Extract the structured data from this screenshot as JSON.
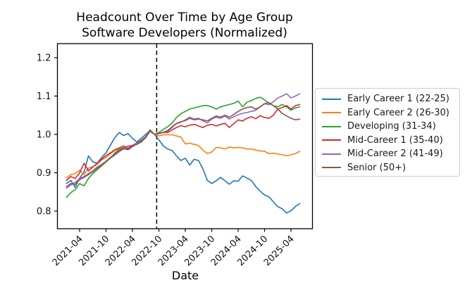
{
  "figure": {
    "background": "#ffffff",
    "text_color": "#000000"
  },
  "chart_data": {
    "type": "line",
    "title": "Headcount Over Time by Age Group Software Developers (Normalized)",
    "title_lines": [
      "Headcount Over Time by Age Group",
      "Software Developers (Normalized)"
    ],
    "xlabel": "Date",
    "ylabel": "",
    "grid": false,
    "legend_position": "right",
    "y_ticks": [
      0.8,
      0.9,
      1.0,
      1.1,
      1.2
    ],
    "ylim": [
      0.754,
      1.237
    ],
    "x_tick_labels": [
      "2021-04",
      "2021-10",
      "2022-04",
      "2022-10",
      "2023-04",
      "2023-10",
      "2024-04",
      "2024-10",
      "2025-04"
    ],
    "vline_date": "2022-09",
    "vline_style": "dashed-black",
    "x_months": [
      "2021-01",
      "2021-02",
      "2021-03",
      "2021-04",
      "2021-05",
      "2021-06",
      "2021-07",
      "2021-08",
      "2021-09",
      "2021-10",
      "2021-11",
      "2021-12",
      "2022-01",
      "2022-02",
      "2022-03",
      "2022-04",
      "2022-05",
      "2022-06",
      "2022-07",
      "2022-08",
      "2022-09",
      "2022-10",
      "2022-11",
      "2022-12",
      "2023-01",
      "2023-02",
      "2023-03",
      "2023-04",
      "2023-05",
      "2023-06",
      "2023-07",
      "2023-08",
      "2023-09",
      "2023-10",
      "2023-11",
      "2023-12",
      "2024-01",
      "2024-02",
      "2024-03",
      "2024-04",
      "2024-05",
      "2024-06",
      "2024-07",
      "2024-08",
      "2024-09",
      "2024-10",
      "2024-11",
      "2024-12",
      "2025-01",
      "2025-02",
      "2025-03",
      "2025-04",
      "2025-05",
      "2025-06"
    ],
    "series": [
      {
        "name": "Early Career 1 (22-25)",
        "color": "#1f77b4",
        "values": [
          0.872,
          0.88,
          0.862,
          0.886,
          0.902,
          0.944,
          0.928,
          0.925,
          0.94,
          0.952,
          0.972,
          0.992,
          1.005,
          0.997,
          1.002,
          0.99,
          0.98,
          0.99,
          1.0,
          1.01,
          1.0,
          0.986,
          0.97,
          0.962,
          0.958,
          0.944,
          0.932,
          0.938,
          0.92,
          0.935,
          0.932,
          0.91,
          0.88,
          0.872,
          0.879,
          0.888,
          0.879,
          0.87,
          0.879,
          0.878,
          0.892,
          0.886,
          0.88,
          0.864,
          0.852,
          0.842,
          0.837,
          0.824,
          0.812,
          0.806,
          0.795,
          0.801,
          0.812,
          0.82
        ]
      },
      {
        "name": "Early Career 2 (26-30)",
        "color": "#ff7f0e",
        "values": [
          0.886,
          0.895,
          0.898,
          0.907,
          0.895,
          0.912,
          0.916,
          0.922,
          0.934,
          0.94,
          0.95,
          0.958,
          0.962,
          0.966,
          0.97,
          0.972,
          0.976,
          0.982,
          0.992,
          1.008,
          1.0,
          0.996,
          0.999,
          0.999,
          0.999,
          0.996,
          0.993,
          0.975,
          0.977,
          0.974,
          0.971,
          0.959,
          0.95,
          0.954,
          0.966,
          0.965,
          0.962,
          0.967,
          0.965,
          0.966,
          0.965,
          0.962,
          0.962,
          0.959,
          0.957,
          0.956,
          0.95,
          0.951,
          0.949,
          0.947,
          0.944,
          0.947,
          0.95,
          0.956
        ]
      },
      {
        "name": "Developing (31-34)",
        "color": "#2ca02c",
        "values": [
          0.836,
          0.848,
          0.856,
          0.872,
          0.866,
          0.885,
          0.898,
          0.908,
          0.918,
          0.928,
          0.938,
          0.952,
          0.96,
          0.965,
          0.962,
          0.97,
          0.974,
          0.98,
          0.992,
          1.008,
          1.0,
          1.005,
          1.013,
          1.02,
          1.03,
          1.044,
          1.054,
          1.06,
          1.066,
          1.069,
          1.072,
          1.075,
          1.075,
          1.072,
          1.066,
          1.072,
          1.075,
          1.078,
          1.081,
          1.087,
          1.072,
          1.084,
          1.088,
          1.094,
          1.097,
          1.09,
          1.081,
          1.075,
          1.072,
          1.078,
          1.072,
          1.063,
          1.069,
          1.072
        ]
      },
      {
        "name": "Mid-Career 1 (35-40)",
        "color": "#d62728",
        "values": [
          0.88,
          0.89,
          0.885,
          0.9,
          0.925,
          0.905,
          0.915,
          0.925,
          0.935,
          0.945,
          0.952,
          0.96,
          0.965,
          0.97,
          0.963,
          0.972,
          0.975,
          0.982,
          0.992,
          1.012,
          1.0,
          1.003,
          1.005,
          1.005,
          1.012,
          1.018,
          1.023,
          1.02,
          1.024,
          1.026,
          1.022,
          1.018,
          1.024,
          1.026,
          1.022,
          1.026,
          1.029,
          1.018,
          1.028,
          1.038,
          1.035,
          1.042,
          1.046,
          1.041,
          1.049,
          1.044,
          1.042,
          1.05,
          1.066,
          1.07,
          1.075,
          1.066,
          1.075,
          1.078
        ]
      },
      {
        "name": "Mid-Career 2 (41-49)",
        "color": "#9467bd",
        "values": [
          0.86,
          0.868,
          0.875,
          0.885,
          0.89,
          0.898,
          0.905,
          0.915,
          0.922,
          0.93,
          0.938,
          0.946,
          0.955,
          0.962,
          0.968,
          0.972,
          0.978,
          0.985,
          0.994,
          1.008,
          1.0,
          1.002,
          1.005,
          1.008,
          1.018,
          1.028,
          1.032,
          1.038,
          1.045,
          1.04,
          1.042,
          1.035,
          1.03,
          1.04,
          1.045,
          1.042,
          1.048,
          1.04,
          1.046,
          1.051,
          1.055,
          1.057,
          1.06,
          1.063,
          1.072,
          1.08,
          1.077,
          1.085,
          1.095,
          1.1,
          1.106,
          1.095,
          1.1,
          1.106
        ]
      },
      {
        "name": "Senior (50+)",
        "color": "#8c564b",
        "values": [
          0.864,
          0.872,
          0.87,
          0.882,
          0.888,
          0.895,
          0.903,
          0.912,
          0.92,
          0.93,
          0.94,
          0.948,
          0.958,
          0.963,
          0.96,
          0.968,
          0.975,
          0.982,
          0.994,
          1.01,
          1.0,
          1.002,
          1.006,
          1.01,
          1.02,
          1.029,
          1.033,
          1.036,
          1.042,
          1.038,
          1.04,
          1.038,
          1.035,
          1.042,
          1.048,
          1.045,
          1.05,
          1.045,
          1.052,
          1.06,
          1.066,
          1.07,
          1.072,
          1.066,
          1.072,
          1.08,
          1.083,
          1.075,
          1.066,
          1.055,
          1.048,
          1.042,
          1.038,
          1.04
        ]
      }
    ]
  }
}
